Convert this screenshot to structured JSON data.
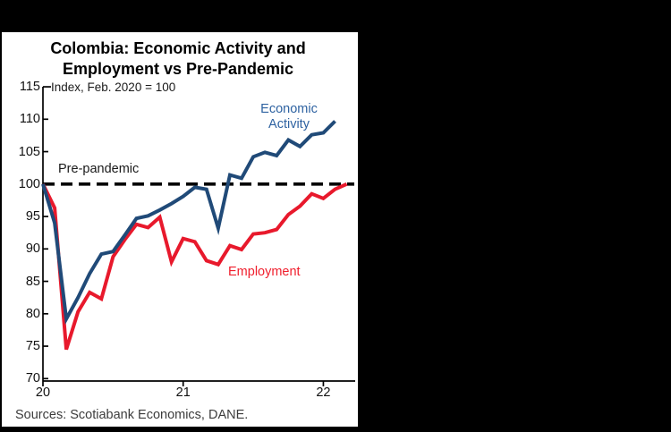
{
  "page": {
    "background": "#000000"
  },
  "panel": {
    "background": "#ffffff"
  },
  "header": {
    "title_line1": "Colombia: Economic Activity and",
    "title_line2": "Employment vs Pre-Pandemic"
  },
  "labels": {
    "subtitle": "Index, Feb. 2020 = 100",
    "pre_pandemic": "Pre-pandemic",
    "economic_activity": [
      "Economic",
      "Activity"
    ],
    "employment": "Employment",
    "sources": "Sources: Scotiabank Economics, DANE."
  },
  "colors": {
    "economic_activity_line": "#204a78",
    "economic_activity_label": "#2e62a1",
    "employment_line": "#e8192c",
    "employment_label": "#f0202e",
    "reference_line": "#000000",
    "axis": "#000000"
  },
  "chart_data": {
    "type": "line",
    "title": "Colombia: Economic Activity and Employment vs Pre-Pandemic",
    "subtitle": "Index, Feb. 2020 = 100",
    "frequency": "monthly",
    "x_axis": {
      "tick_labels": [
        "20",
        "21",
        "22"
      ],
      "tick_month_offsets": [
        0,
        12,
        24
      ],
      "start_month": "Feb 2020"
    },
    "y_axis": {
      "ylim": [
        70,
        115
      ],
      "ticks": [
        70,
        75,
        80,
        85,
        90,
        95,
        100,
        105,
        110,
        115
      ]
    },
    "grid": false,
    "reference_line": {
      "label": "Pre-pandemic",
      "value": 100,
      "style": "dashed"
    },
    "series": [
      {
        "name": "Economic Activity",
        "start_month": "Feb 2020",
        "end_month": "Mar 2022",
        "values": [
          100,
          94,
          79.2,
          82.5,
          86.2,
          89.2,
          89.6,
          92.1,
          94.7,
          95.1,
          96.0,
          97.0,
          98.1,
          99.5,
          99.2,
          93.2,
          101.4,
          100.9,
          104.2,
          104.9,
          104.4,
          106.8,
          105.8,
          107.6,
          107.9,
          109.7
        ]
      },
      {
        "name": "Employment",
        "start_month": "Feb 2020",
        "end_month": "Apr 2022",
        "values": [
          100,
          96.3,
          74.5,
          80.3,
          83.3,
          82.3,
          88.8,
          91.4,
          93.8,
          93.3,
          94.9,
          88.0,
          91.6,
          91.1,
          88.2,
          87.6,
          90.5,
          89.9,
          92.3,
          92.5,
          93.0,
          95.3,
          96.6,
          98.5,
          97.8,
          99.2,
          100.0
        ]
      }
    ]
  }
}
